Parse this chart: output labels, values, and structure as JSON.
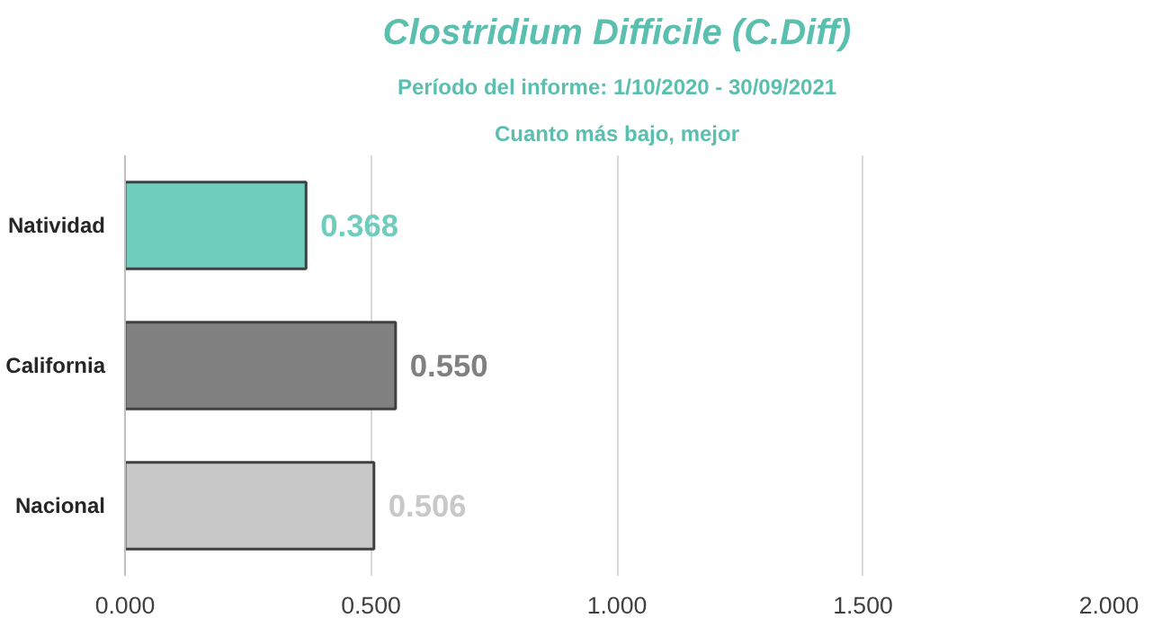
{
  "chart_data": {
    "type": "bar",
    "orientation": "horizontal",
    "title": "Clostridium Difficile (C.Diff)",
    "subtitle": "Período del informe: 1/10/2020 - 30/09/2021",
    "annotations": [
      "Cuanto más bajo, mejor"
    ],
    "categories": [
      "Natividad",
      "California",
      "Nacional"
    ],
    "values": [
      0.368,
      0.55,
      0.506
    ],
    "value_labels": [
      "0.368",
      "0.550",
      "0.506"
    ],
    "colors": [
      "#6ecdbd",
      "#808080",
      "#c8c8c8"
    ],
    "xlim": [
      0,
      2
    ],
    "xticks": [
      {
        "value": 0,
        "label": "0.000"
      },
      {
        "value": 0.5,
        "label": "0.500"
      },
      {
        "value": 1,
        "label": "1.000"
      },
      {
        "value": 1.5,
        "label": "1.500"
      },
      {
        "value": 2,
        "label": "2.000"
      }
    ],
    "grid": "x"
  }
}
